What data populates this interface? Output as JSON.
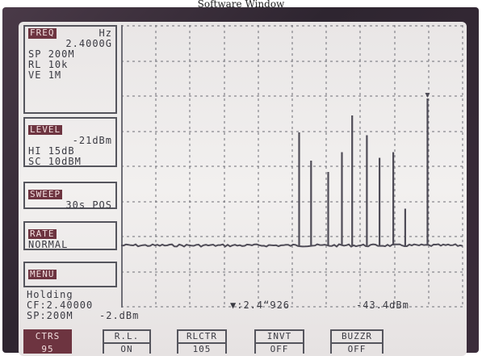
{
  "window": {
    "title": "Software Window"
  },
  "freq_panel": {
    "tag": "FREQ",
    "unit": "Hz",
    "center": "2.4000G",
    "sp_label": "SP",
    "sp_value": "200M",
    "rl_label": "RL",
    "rl_value": "10k",
    "ve_label": "VE",
    "ve_value": "1M"
  },
  "level_panel": {
    "tag": "LEVEL",
    "reference": "-21dBm",
    "hi_label": "HI",
    "hi_value": "15dB",
    "sc_label": "SC",
    "sc_value": "10dBM"
  },
  "sweep_panel": {
    "tag": "SWEEP",
    "time": "30s",
    "mode": "POS"
  },
  "trace_panel": {
    "tag": "RATE",
    "mode": "NORMAL"
  },
  "menu_panel": {
    "tag": "MENU"
  },
  "status": {
    "holding": "Holding",
    "cf": "CF:2.40000",
    "sp": "SP:200M",
    "ref_level": "-2.dBm",
    "marker_freq": "▼:2.4“926",
    "marker_level": "-43.4dBm"
  },
  "softkeys": [
    {
      "label": "CTRS",
      "value": "95",
      "active": true
    },
    {
      "label": "R.L.",
      "value": "ON",
      "active": false
    },
    {
      "label": "RLCTR",
      "value": "105",
      "active": false
    },
    {
      "label": "INVT",
      "value": "OFF",
      "active": false
    },
    {
      "label": "BUZZR",
      "value": "OFF",
      "active": false
    }
  ],
  "spectrum": {
    "noise_floor_fraction": 0.78,
    "peaks": [
      {
        "pos": 0.52,
        "height": 0.4
      },
      {
        "pos": 0.555,
        "height": 0.3
      },
      {
        "pos": 0.605,
        "height": 0.26
      },
      {
        "pos": 0.645,
        "height": 0.33
      },
      {
        "pos": 0.675,
        "height": 0.46
      },
      {
        "pos": 0.718,
        "height": 0.39
      },
      {
        "pos": 0.755,
        "height": 0.31
      },
      {
        "pos": 0.795,
        "height": 0.33
      },
      {
        "pos": 0.83,
        "height": 0.13
      },
      {
        "pos": 0.895,
        "height": 0.52
      }
    ]
  },
  "colors": {
    "trace": "#4f4c57",
    "grid": "#6e6e76",
    "accent": "#6d3440"
  }
}
